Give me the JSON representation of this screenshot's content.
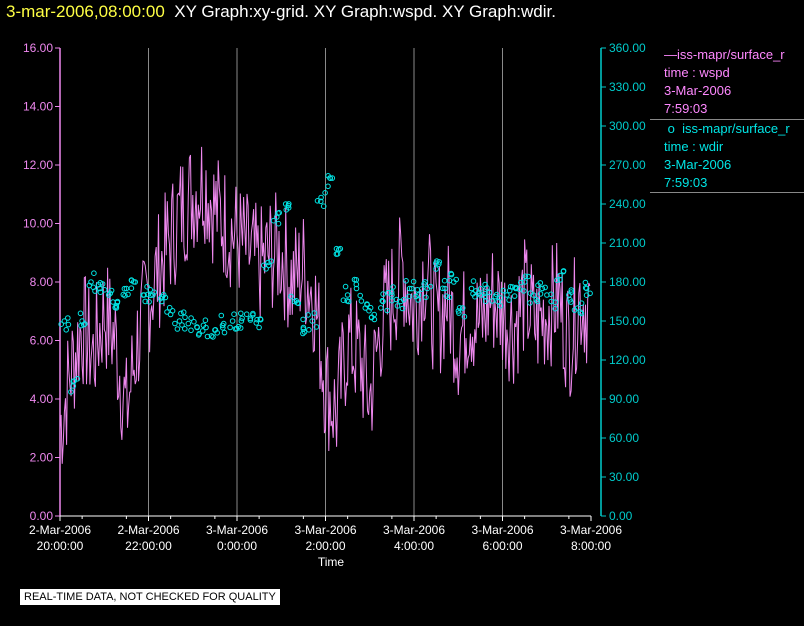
{
  "title": {
    "time": "3-mar-2006,08:00:00",
    "text": "XY Graph:xy-grid.  XY Graph:wspd.  XY Graph:wdir."
  },
  "legend": {
    "wspd": {
      "name": "iss-mapr/surface_r",
      "line1": "time : wspd",
      "line2": "3-Mar-2006",
      "line3": "7:59:03"
    },
    "wdir": {
      "name": "iss-mapr/surface_r",
      "line1": "time : wdir",
      "line2": "3-Mar-2006",
      "line3": "7:59:03"
    }
  },
  "quality_note": "REAL-TIME DATA, NOT CHECKED FOR QUALITY",
  "colors": {
    "wspd": "#ee88ee",
    "wdir": "#00e5e5",
    "axis_left": "#ee88ee",
    "axis_right": "#00cccc",
    "grid": "#8a8a8a",
    "title_time": "#ffff44"
  },
  "chart_data": {
    "type": "line",
    "xlabel": "Time",
    "x_range": [
      "2-Mar-2006 20:00:00",
      "3-Mar-2006 08:00:00"
    ],
    "x_ticks": [
      {
        "date": "2-Mar-2006",
        "time": "20:00:00",
        "hour": 0
      },
      {
        "date": "2-Mar-2006",
        "time": "22:00:00",
        "hour": 2
      },
      {
        "date": "3-Mar-2006",
        "time": "0:00:00",
        "hour": 4
      },
      {
        "date": "3-Mar-2006",
        "time": "2:00:00",
        "hour": 6
      },
      {
        "date": "3-Mar-2006",
        "time": "4:00:00",
        "hour": 8
      },
      {
        "date": "3-Mar-2006",
        "time": "6:00:00",
        "hour": 10
      },
      {
        "date": "3-Mar-2006",
        "time": "8:00:00",
        "hour": 12
      }
    ],
    "y_left": {
      "ylim": [
        0,
        16
      ],
      "ticks": [
        "0.00",
        "2.00",
        "4.00",
        "6.00",
        "8.00",
        "10.00",
        "12.00",
        "14.00",
        "16.00"
      ]
    },
    "y_right": {
      "ylim": [
        0,
        360
      ],
      "ticks": [
        "0.00",
        "30.00",
        "60.00",
        "90.00",
        "120.00",
        "150.00",
        "180.00",
        "210.00",
        "240.00",
        "270.00",
        "300.00",
        "330.00",
        "360.00"
      ]
    },
    "grid": "vertical lines at x ticks",
    "series": [
      {
        "name": "iss-mapr/surface_r time : wspd",
        "type": "line",
        "axis": "left",
        "hours": [
          0,
          0.25,
          0.5,
          0.75,
          1,
          1.25,
          1.5,
          1.75,
          2,
          2.25,
          2.5,
          2.75,
          3,
          3.25,
          3.5,
          3.75,
          4,
          4.25,
          4.5,
          4.75,
          5,
          5.25,
          5.5,
          5.75,
          6,
          6.25,
          6.5,
          6.75,
          7,
          7.25,
          7.5,
          7.75,
          8,
          8.25,
          8.5,
          8.75,
          9,
          9.25,
          9.5,
          9.75,
          10,
          10.25,
          10.5,
          10.75,
          11,
          11.25,
          11.5,
          11.75,
          12
        ],
        "values": [
          3.0,
          5.0,
          6.5,
          5.5,
          7.0,
          6.0,
          3.5,
          6.0,
          7.5,
          8.5,
          9.5,
          10.5,
          11.0,
          11.5,
          10.5,
          10.0,
          9.5,
          9.0,
          8.5,
          9.0,
          9.0,
          8.0,
          8.5,
          7.5,
          4.5,
          3.5,
          6.0,
          5.5,
          4.0,
          6.5,
          7.5,
          8.5,
          7.0,
          8.5,
          6.5,
          7.5,
          6.0,
          7.0,
          6.5,
          7.5,
          7.0,
          6.5,
          7.5,
          6.5,
          7.0,
          7.5,
          6.0,
          7.5,
          7.0
        ]
      },
      {
        "name": "iss-mapr/surface_r time : wdir",
        "type": "scatter",
        "axis": "right",
        "hours": [
          0.1,
          0.3,
          0.5,
          0.7,
          0.9,
          1.1,
          1.3,
          1.5,
          1.7,
          1.9,
          2.1,
          2.3,
          2.5,
          2.7,
          2.9,
          3.1,
          3.3,
          3.5,
          3.7,
          3.9,
          4.1,
          4.3,
          4.5,
          4.7,
          4.9,
          5.1,
          5.3,
          5.5,
          5.7,
          5.9,
          6.1,
          6.3,
          6.5,
          6.7,
          6.9,
          7.1,
          7.3,
          7.5,
          7.7,
          7.9,
          8.1,
          8.3,
          8.5,
          8.7,
          8.9,
          9.1,
          9.3,
          9.5,
          9.7,
          9.9,
          10.1,
          10.3,
          10.5,
          10.7,
          10.9,
          11.1,
          11.3,
          11.5,
          11.7,
          11.9
        ],
        "values": [
          150,
          100,
          150,
          180,
          175,
          170,
          165,
          175,
          180,
          170,
          170,
          165,
          155,
          150,
          148,
          145,
          145,
          143,
          148,
          150,
          150,
          152,
          145,
          195,
          230,
          240,
          165,
          145,
          150,
          245,
          260,
          205,
          170,
          175,
          160,
          155,
          165,
          170,
          165,
          175,
          170,
          175,
          190,
          175,
          180,
          160,
          175,
          170,
          172,
          165,
          170,
          175,
          180,
          170,
          175,
          165,
          185,
          170,
          160,
          175
        ]
      }
    ]
  }
}
